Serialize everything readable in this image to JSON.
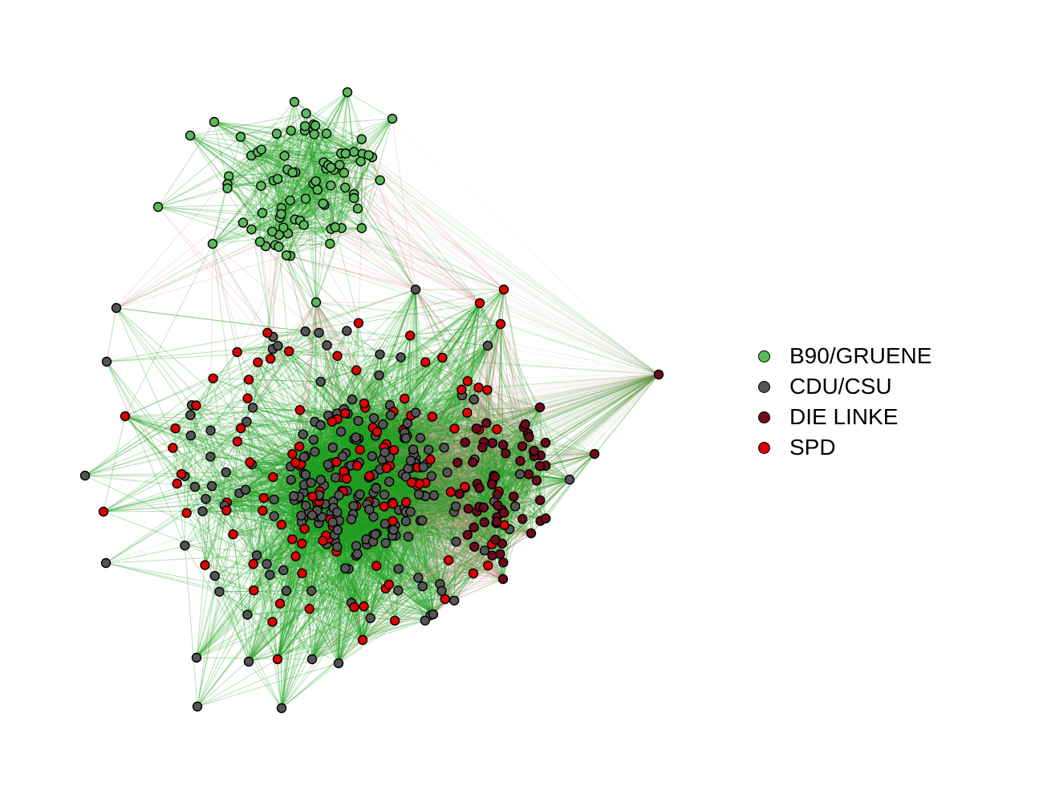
{
  "legend": {
    "items": [
      {
        "label": "B90/GRUENE",
        "color": "#5cb85c"
      },
      {
        "label": "CDU/CSU",
        "color": "#555555"
      },
      {
        "label": "DIE LINKE",
        "color": "#6b0a1e"
      },
      {
        "label": "SPD",
        "color": "#e00000"
      }
    ]
  },
  "colors": {
    "edge_same_party": "#1f9e1f",
    "edge_cross_party": "#e8899c",
    "node_outline": "#000000"
  }
}
